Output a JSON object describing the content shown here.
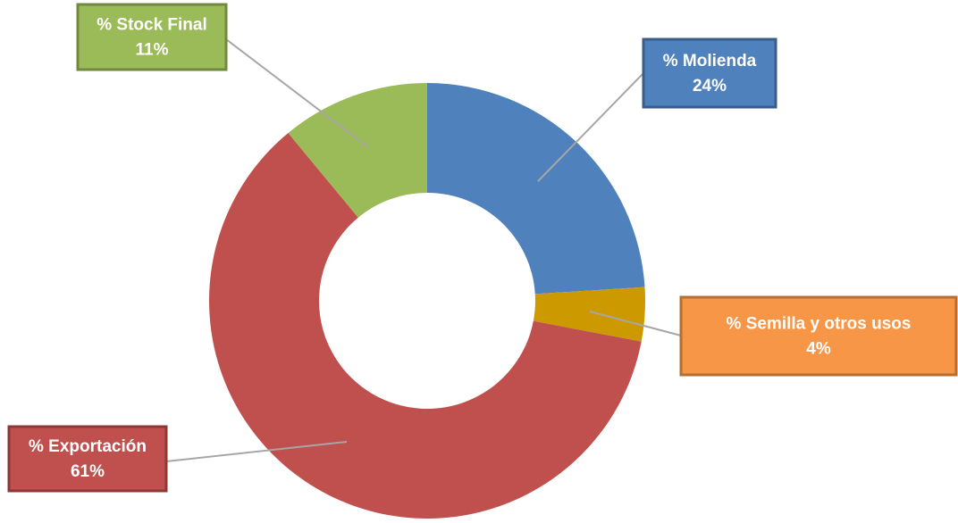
{
  "chart_data": {
    "type": "donut",
    "categories": [
      "% Molienda",
      "% Semilla y otros usos",
      "% Exportación",
      "% Stock Final"
    ],
    "values": [
      24,
      4,
      61,
      11
    ],
    "value_labels": [
      "24%",
      "4%",
      "61%",
      "11%"
    ],
    "colors": [
      "#4f81bd",
      "#cc9900",
      "#c0504d",
      "#9bbb59"
    ],
    "label_colors": [
      "#4f81bd",
      "#f79646",
      "#c0504d",
      "#9bbb59"
    ],
    "label_borders": [
      "#385d8a",
      "#b66d31",
      "#8c3836",
      "#71893f"
    ]
  }
}
